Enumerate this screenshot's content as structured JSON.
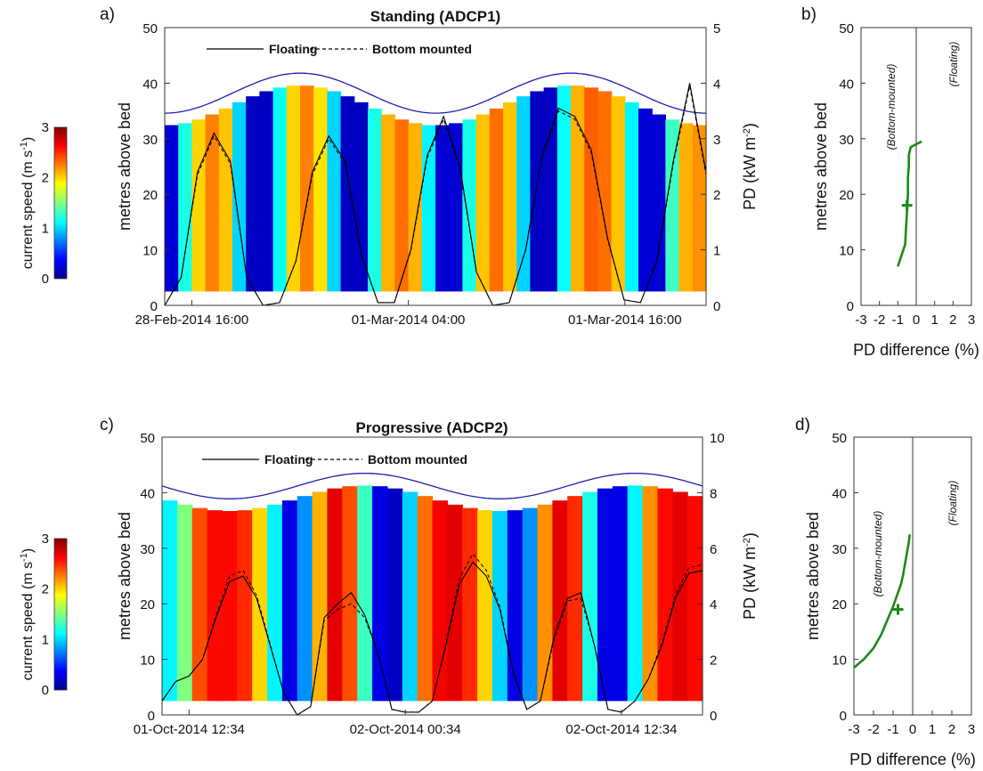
{
  "chart_data": [
    {
      "panel": "a)",
      "type": "heatmap",
      "title": "Standing (ADCP1)",
      "ylabel": "metres above bed",
      "y2label": "PD (kW m-2)",
      "ylim": [
        0,
        50
      ],
      "y2lim": [
        0,
        5
      ],
      "yticks": [
        "0",
        "10",
        "20",
        "30",
        "40",
        "50"
      ],
      "y2ticks": [
        "0",
        "1",
        "2",
        "3",
        "4",
        "5"
      ],
      "xticks": [
        "28-Feb-2014 16:00",
        "01-Mar-2014 04:00",
        "01-Mar-2014 16:00"
      ],
      "legend": {
        "floating": "Floating",
        "bottom": "Bottom mounted"
      },
      "colorbar": {
        "label": "current speed (m s-1)",
        "ticks": [
          "0",
          "1",
          "2",
          "3"
        ],
        "range": [
          0,
          3
        ]
      },
      "surface_elevation_m": {
        "mean": 38.2,
        "amplitude": 3.6,
        "cycles": 2.0,
        "phase_deg": -90
      },
      "speed_bins_mps": [
        0.25,
        1.2,
        2.0,
        2.25,
        2.05,
        1.0,
        0.2,
        0.2,
        1.15,
        2.0,
        2.25,
        1.95,
        1.0,
        0.2,
        0.2,
        1.2,
        2.1,
        2.3,
        2.1,
        1.1,
        0.25,
        0.25,
        1.2,
        2.05,
        2.3,
        2.05,
        1.0,
        0.2,
        0.2,
        1.15,
        2.1,
        2.35,
        2.3,
        2.05,
        1.1,
        0.25,
        0.25,
        1.3,
        2.1,
        2.2
      ],
      "pd_floating_kWm2": [
        0.0,
        0.5,
        2.4,
        3.1,
        2.6,
        0.5,
        0.0,
        0.05,
        0.8,
        2.4,
        3.05,
        2.6,
        0.9,
        0.05,
        0.05,
        1.0,
        2.7,
        3.4,
        2.5,
        0.6,
        0.0,
        0.05,
        1.0,
        2.7,
        3.55,
        3.4,
        2.8,
        1.2,
        0.1,
        0.05,
        0.8,
        2.6,
        4.0,
        2.4
      ],
      "pd_bottom_kWm2": [
        0.0,
        0.5,
        2.35,
        3.05,
        2.55,
        0.5,
        0.0,
        0.05,
        0.8,
        2.35,
        3.0,
        2.55,
        0.88,
        0.05,
        0.05,
        0.98,
        2.65,
        3.35,
        2.45,
        0.6,
        0.0,
        0.05,
        0.98,
        2.65,
        3.5,
        3.35,
        2.75,
        1.18,
        0.1,
        0.05,
        0.78,
        2.55,
        3.95,
        2.35
      ]
    },
    {
      "panel": "b)",
      "type": "line",
      "xlabel": "PD difference (%)",
      "ylabel": "metres above bed",
      "xlim": [
        -3,
        3
      ],
      "ylim": [
        0,
        50
      ],
      "xticks": [
        "-3",
        "-2",
        "-1",
        "0",
        "1",
        "2",
        "3"
      ],
      "yticks": [
        "0",
        "10",
        "20",
        "30",
        "40",
        "50"
      ],
      "annotations": [
        "(Bottom-mounted)",
        "(Floating)"
      ],
      "series": [
        {
          "x": [
            -1.0,
            -0.9,
            -0.6,
            -0.55,
            -0.5,
            -0.45,
            -0.45,
            -0.4,
            -0.4,
            -0.3,
            0.0,
            0.3
          ],
          "y": [
            7,
            8,
            11,
            14,
            17,
            20,
            23,
            25,
            27,
            28.5,
            29,
            29.5
          ]
        }
      ],
      "marker": {
        "x": -0.5,
        "y": 18
      }
    },
    {
      "panel": "c)",
      "type": "heatmap",
      "title": "Progressive (ADCP2)",
      "ylabel": "metres above bed",
      "y2label": "PD (kW m-2)",
      "ylim": [
        0,
        50
      ],
      "y2lim": [
        0,
        10
      ],
      "yticks": [
        "0",
        "10",
        "20",
        "30",
        "40",
        "50"
      ],
      "y2ticks": [
        "0",
        "2",
        "4",
        "6",
        "8",
        "10"
      ],
      "xticks": [
        "01-Oct-2014 12:34",
        "02-Oct-2014 00:34",
        "02-Oct-2014 12:34"
      ],
      "legend": {
        "floating": "Floating",
        "bottom": "Bottom mounted"
      },
      "colorbar": {
        "label": "current speed (m s-1)",
        "ticks": [
          "0",
          "1",
          "2",
          "3"
        ],
        "range": [
          0,
          3
        ]
      },
      "surface_elevation_m": {
        "mean": 41.2,
        "amplitude": 2.3,
        "cycles": 2.0,
        "phase_deg": 180
      },
      "speed_bins_mps": [
        1.1,
        1.5,
        2.4,
        2.6,
        2.6,
        2.5,
        2.0,
        1.1,
        0.3,
        0.8,
        2.1,
        2.7,
        2.4,
        1.3,
        0.3,
        0.2,
        1.0,
        2.3,
        2.65,
        2.7,
        2.5,
        2.0,
        1.0,
        0.3,
        0.8,
        2.2,
        2.7,
        2.5,
        1.2,
        0.3,
        0.3,
        1.1,
        2.2,
        2.6,
        2.7,
        2.6
      ],
      "pd_floating_kWm2": [
        0.5,
        1.2,
        1.4,
        2.0,
        3.5,
        4.8,
        5.0,
        4.2,
        2.5,
        0.8,
        0.0,
        0.3,
        3.5,
        4.0,
        4.4,
        3.6,
        2.2,
        0.2,
        0.1,
        0.1,
        0.5,
        2.5,
        4.7,
        5.5,
        5.0,
        3.8,
        1.5,
        0.2,
        0.5,
        2.8,
        4.2,
        4.4,
        2.5,
        0.2,
        0.1,
        0.5,
        1.3,
        2.5,
        4.2,
        5.1,
        5.2
      ],
      "pd_bottom_kWm2": [
        0.5,
        1.2,
        1.4,
        2.0,
        3.6,
        5.0,
        5.2,
        4.3,
        2.55,
        0.8,
        0.0,
        0.3,
        3.4,
        3.8,
        4.0,
        3.5,
        2.2,
        0.2,
        0.1,
        0.1,
        0.5,
        2.55,
        4.9,
        5.8,
        5.2,
        3.9,
        1.55,
        0.2,
        0.5,
        2.7,
        4.1,
        4.2,
        2.5,
        0.2,
        0.1,
        0.5,
        1.3,
        2.6,
        4.3,
        5.3,
        5.4
      ]
    },
    {
      "panel": "d)",
      "type": "line",
      "xlabel": "PD difference (%)",
      "ylabel": "metres above bed",
      "xlim": [
        -3,
        3
      ],
      "ylim": [
        0,
        50
      ],
      "xticks": [
        "-3",
        "-2",
        "-1",
        "0",
        "1",
        "2",
        "3"
      ],
      "yticks": [
        "0",
        "10",
        "20",
        "30",
        "40",
        "50"
      ],
      "annotations": [
        "(Bottom-mounted)",
        "(Floating)"
      ],
      "series": [
        {
          "x": [
            -3.0,
            -2.5,
            -2.0,
            -1.6,
            -1.3,
            -1.0,
            -0.8,
            -0.6,
            -0.5,
            -0.4,
            -0.3,
            -0.2,
            -0.15
          ],
          "y": [
            8.5,
            10,
            12,
            14.5,
            17,
            19.5,
            21.5,
            23.5,
            25,
            27,
            29,
            31,
            32.5
          ]
        }
      ],
      "marker": {
        "x": -0.75,
        "y": 19
      }
    }
  ]
}
